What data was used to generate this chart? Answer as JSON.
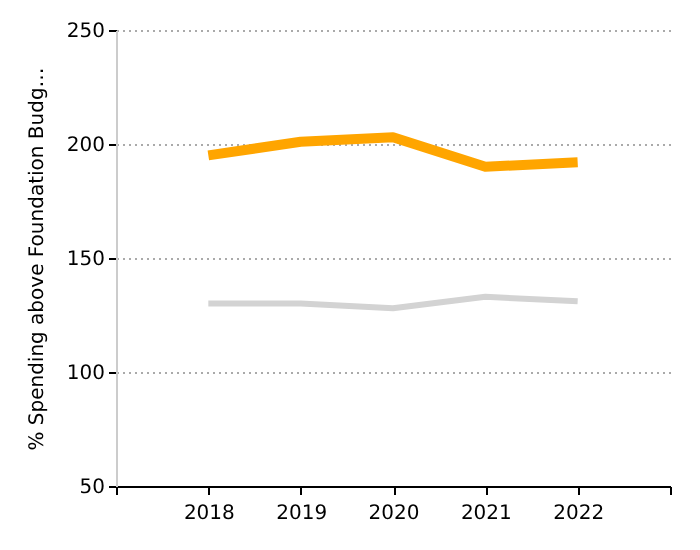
{
  "chart_data": {
    "type": "line",
    "ylabel": "% Spending above Foundation Budg…",
    "x": [
      2018,
      2019,
      2020,
      2021,
      2022
    ],
    "series": [
      {
        "color": "#ffa500",
        "values": [
          195,
          201,
          203,
          190,
          192
        ]
      },
      {
        "color": "#d3d3d3",
        "values": [
          130,
          130,
          128,
          133,
          131
        ]
      }
    ],
    "xlim": [
      2017,
      2023
    ],
    "xticks": [
      {
        "value": 2017,
        "label": null
      },
      2018,
      2019,
      2020,
      2021,
      2022,
      {
        "value": 2023,
        "label": null
      }
    ],
    "ylim": [
      50,
      250
    ],
    "yticks": [
      50,
      100,
      150,
      200,
      250
    ],
    "grid": "y",
    "marker": "none",
    "line_style": "solid"
  }
}
